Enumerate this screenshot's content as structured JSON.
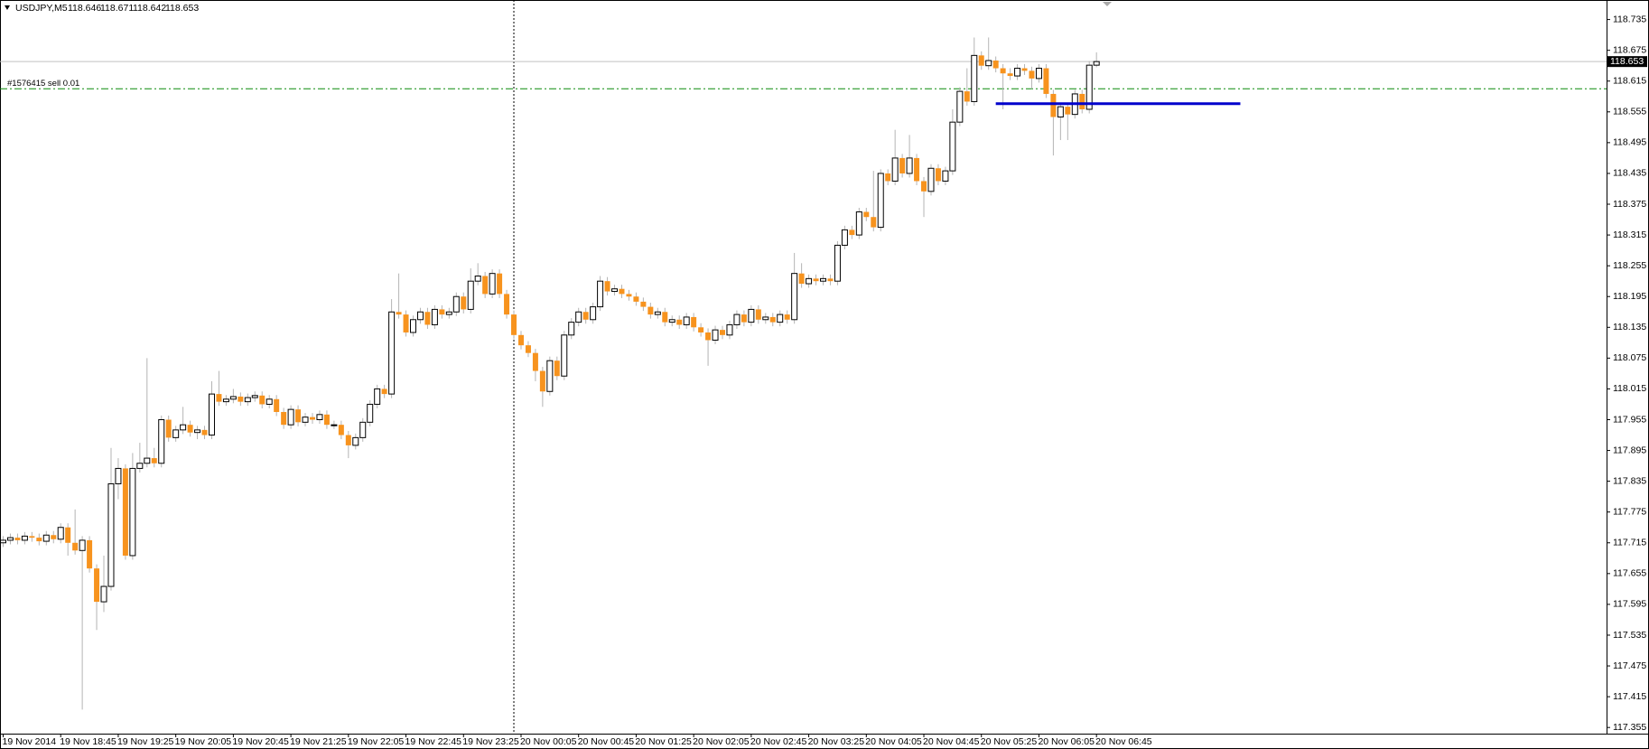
{
  "chart_data": {
    "type": "candlestick",
    "symbol": "USDJPY,M5",
    "categories": [
      "19 Nov 2014",
      null,
      null,
      null,
      null,
      null,
      null,
      null,
      "19 Nov 18:45",
      null,
      null,
      null,
      null,
      null,
      null,
      null,
      "19 Nov 19:25",
      null,
      null,
      null,
      null,
      null,
      null,
      null,
      "19 Nov 20:05",
      null,
      null,
      null,
      null,
      null,
      null,
      null,
      "19 Nov 20:45",
      null,
      null,
      null,
      null,
      null,
      null,
      null,
      "19 Nov 21:25",
      null,
      null,
      null,
      null,
      null,
      null,
      null,
      "19 Nov 22:05",
      null,
      null,
      null,
      null,
      null,
      null,
      null,
      "19 Nov 22:45",
      null,
      null,
      null,
      null,
      null,
      null,
      null,
      "19 Nov 23:25",
      null,
      null,
      null,
      null,
      null,
      null,
      null,
      "20 Nov 00:05",
      null,
      null,
      null,
      null,
      null,
      null,
      null,
      "20 Nov 00:45",
      null,
      null,
      null,
      null,
      null,
      null,
      null,
      "20 Nov 01:25",
      null,
      null,
      null,
      null,
      null,
      null,
      null,
      "20 Nov 02:05",
      null,
      null,
      null,
      null,
      null,
      null,
      null,
      "20 Nov 02:45",
      null,
      null,
      null,
      null,
      null,
      null,
      null,
      "20 Nov 03:25",
      null,
      null,
      null,
      null,
      null,
      null,
      null,
      "20 Nov 04:05",
      null,
      null,
      null,
      null,
      null,
      null,
      null,
      "20 Nov 04:45",
      null,
      null,
      null,
      null,
      null,
      null,
      null,
      "20 Nov 05:25",
      null,
      null,
      null,
      null,
      null,
      null,
      null,
      "20 Nov 06:05",
      null,
      null,
      null,
      null,
      null,
      null,
      null,
      "20 Nov 06:45"
    ],
    "ohlc": [
      [
        117.715,
        117.728,
        117.707,
        117.72
      ],
      [
        117.72,
        117.733,
        117.712,
        117.725
      ],
      [
        117.725,
        117.733,
        117.712,
        117.72
      ],
      [
        117.72,
        117.736,
        117.712,
        117.728
      ],
      [
        117.728,
        117.736,
        117.717,
        117.725
      ],
      [
        117.725,
        117.733,
        117.71,
        117.718
      ],
      [
        117.718,
        117.738,
        117.71,
        117.73
      ],
      [
        117.73,
        117.738,
        117.714,
        117.722
      ],
      [
        117.722,
        117.753,
        117.714,
        117.745
      ],
      [
        117.745,
        117.753,
        117.69,
        117.715
      ],
      [
        117.715,
        117.78,
        117.692,
        117.7
      ],
      [
        117.7,
        117.728,
        117.39,
        117.72
      ],
      [
        117.72,
        117.728,
        117.657,
        117.665
      ],
      [
        117.665,
        117.673,
        117.545,
        117.6
      ],
      [
        117.6,
        117.69,
        117.58,
        117.63
      ],
      [
        117.63,
        117.9,
        117.622,
        117.83
      ],
      [
        117.83,
        117.88,
        117.8,
        117.86
      ],
      [
        117.86,
        117.868,
        117.682,
        117.69
      ],
      [
        117.69,
        117.89,
        117.682,
        117.86
      ],
      [
        117.86,
        117.91,
        117.852,
        117.87
      ],
      [
        117.87,
        118.075,
        117.862,
        117.88
      ],
      [
        117.88,
        117.9,
        117.862,
        117.87
      ],
      [
        117.87,
        117.963,
        117.862,
        117.955
      ],
      [
        117.955,
        117.963,
        117.912,
        117.92
      ],
      [
        117.92,
        117.943,
        117.912,
        117.935
      ],
      [
        117.935,
        117.98,
        117.927,
        117.945
      ],
      [
        117.945,
        117.953,
        117.922,
        117.93
      ],
      [
        117.93,
        117.943,
        117.917,
        117.935
      ],
      [
        117.935,
        117.943,
        117.917,
        117.925
      ],
      [
        117.925,
        118.03,
        117.917,
        118.005
      ],
      [
        118.005,
        118.05,
        117.982,
        117.99
      ],
      [
        117.99,
        118.003,
        117.982,
        117.995
      ],
      [
        117.995,
        118.015,
        117.987,
        118.0
      ],
      [
        118.0,
        118.008,
        117.982,
        117.99
      ],
      [
        117.99,
        118.006,
        117.982,
        117.998
      ],
      [
        117.998,
        118.01,
        117.99,
        118.002
      ],
      [
        118.002,
        118.01,
        117.977,
        117.985
      ],
      [
        117.985,
        118.003,
        117.977,
        117.995
      ],
      [
        117.995,
        118.003,
        117.962,
        117.97
      ],
      [
        117.97,
        117.978,
        117.937,
        117.945
      ],
      [
        117.945,
        117.983,
        117.937,
        117.975
      ],
      [
        117.975,
        117.983,
        117.942,
        117.95
      ],
      [
        117.95,
        117.968,
        117.942,
        117.96
      ],
      [
        117.96,
        117.968,
        117.947,
        117.955
      ],
      [
        117.955,
        117.973,
        117.947,
        117.965
      ],
      [
        117.965,
        117.973,
        117.937,
        117.945
      ],
      [
        117.945,
        117.953,
        117.937,
        117.945
      ],
      [
        117.945,
        117.953,
        117.917,
        117.925
      ],
      [
        117.925,
        117.933,
        117.88,
        117.905
      ],
      [
        117.905,
        117.928,
        117.897,
        117.92
      ],
      [
        117.92,
        117.958,
        117.912,
        117.95
      ],
      [
        117.95,
        117.993,
        117.942,
        117.985
      ],
      [
        117.985,
        118.023,
        117.977,
        118.015
      ],
      [
        118.015,
        118.023,
        117.997,
        118.005
      ],
      [
        118.005,
        118.19,
        117.997,
        118.165
      ],
      [
        118.165,
        118.24,
        118.152,
        118.16
      ],
      [
        118.16,
        118.168,
        118.117,
        118.125
      ],
      [
        118.125,
        118.158,
        118.117,
        118.15
      ],
      [
        118.15,
        118.173,
        118.142,
        118.165
      ],
      [
        118.165,
        118.173,
        118.132,
        118.14
      ],
      [
        118.14,
        118.178,
        118.132,
        118.17
      ],
      [
        118.17,
        118.178,
        118.152,
        118.16
      ],
      [
        118.16,
        118.173,
        118.152,
        118.165
      ],
      [
        118.165,
        118.203,
        118.157,
        118.195
      ],
      [
        118.195,
        118.203,
        118.162,
        118.17
      ],
      [
        118.17,
        118.25,
        118.162,
        118.225
      ],
      [
        118.225,
        118.26,
        118.217,
        118.235
      ],
      [
        118.235,
        118.243,
        118.192,
        118.2
      ],
      [
        118.2,
        118.248,
        118.192,
        118.24
      ],
      [
        118.24,
        118.248,
        118.192,
        118.2
      ],
      [
        118.2,
        118.208,
        118.152,
        118.16
      ],
      [
        118.16,
        118.168,
        118.112,
        118.12
      ],
      [
        118.12,
        118.128,
        118.092,
        118.1
      ],
      [
        118.1,
        118.108,
        118.077,
        118.085
      ],
      [
        118.085,
        118.093,
        118.03,
        118.05
      ],
      [
        118.05,
        118.058,
        117.98,
        118.01
      ],
      [
        118.01,
        118.078,
        118.002,
        118.07
      ],
      [
        118.07,
        118.078,
        118.032,
        118.04
      ],
      [
        118.04,
        118.128,
        118.032,
        118.12
      ],
      [
        118.12,
        118.153,
        118.112,
        118.145
      ],
      [
        118.145,
        118.173,
        118.137,
        118.165
      ],
      [
        118.165,
        118.173,
        118.142,
        118.15
      ],
      [
        118.15,
        118.183,
        118.142,
        118.175
      ],
      [
        118.175,
        118.235,
        118.167,
        118.225
      ],
      [
        118.225,
        118.233,
        118.197,
        118.205
      ],
      [
        118.205,
        118.218,
        118.197,
        118.21
      ],
      [
        118.21,
        118.218,
        118.192,
        118.2
      ],
      [
        118.2,
        118.208,
        118.187,
        118.195
      ],
      [
        118.195,
        118.203,
        118.177,
        118.185
      ],
      [
        118.185,
        118.193,
        118.167,
        118.175
      ],
      [
        118.175,
        118.183,
        118.152,
        118.16
      ],
      [
        118.16,
        118.173,
        118.152,
        118.165
      ],
      [
        118.165,
        118.173,
        118.137,
        118.145
      ],
      [
        118.145,
        118.158,
        118.137,
        118.15
      ],
      [
        118.15,
        118.158,
        118.132,
        118.14
      ],
      [
        118.14,
        118.163,
        118.132,
        118.155
      ],
      [
        118.155,
        118.163,
        118.127,
        118.135
      ],
      [
        118.135,
        118.143,
        118.117,
        118.125
      ],
      [
        118.125,
        118.133,
        118.06,
        118.11
      ],
      [
        118.11,
        118.138,
        118.102,
        118.13
      ],
      [
        118.13,
        118.138,
        118.112,
        118.12
      ],
      [
        118.12,
        118.148,
        118.112,
        118.14
      ],
      [
        118.14,
        118.168,
        118.132,
        118.16
      ],
      [
        118.16,
        118.168,
        118.137,
        118.145
      ],
      [
        118.145,
        118.178,
        118.137,
        118.17
      ],
      [
        118.17,
        118.178,
        118.142,
        118.15
      ],
      [
        118.15,
        118.163,
        118.142,
        118.155
      ],
      [
        118.155,
        118.163,
        118.137,
        118.145
      ],
      [
        118.145,
        118.168,
        118.137,
        118.16
      ],
      [
        118.16,
        118.168,
        118.142,
        118.15
      ],
      [
        118.15,
        118.28,
        118.142,
        118.24
      ],
      [
        118.24,
        118.26,
        118.212,
        118.22
      ],
      [
        118.22,
        118.238,
        118.212,
        118.23
      ],
      [
        118.23,
        118.238,
        118.217,
        118.225
      ],
      [
        118.225,
        118.238,
        118.217,
        118.23
      ],
      [
        118.23,
        118.238,
        118.217,
        118.225
      ],
      [
        118.225,
        118.303,
        118.217,
        118.295
      ],
      [
        118.295,
        118.333,
        118.287,
        118.325
      ],
      [
        118.325,
        118.333,
        118.307,
        118.315
      ],
      [
        118.315,
        118.368,
        118.307,
        118.36
      ],
      [
        118.36,
        118.368,
        118.342,
        118.35
      ],
      [
        118.35,
        118.44,
        118.322,
        118.33
      ],
      [
        118.33,
        118.443,
        118.322,
        118.435
      ],
      [
        118.435,
        118.443,
        118.412,
        118.42
      ],
      [
        118.42,
        118.52,
        118.412,
        118.465
      ],
      [
        118.465,
        118.473,
        118.427,
        118.435
      ],
      [
        118.435,
        118.51,
        118.427,
        118.465
      ],
      [
        118.465,
        118.473,
        118.412,
        118.42
      ],
      [
        118.42,
        118.428,
        118.35,
        118.4
      ],
      [
        118.4,
        118.453,
        118.392,
        118.445
      ],
      [
        118.445,
        118.453,
        118.412,
        118.42
      ],
      [
        118.42,
        118.448,
        118.412,
        118.44
      ],
      [
        118.44,
        118.56,
        118.432,
        118.535
      ],
      [
        118.535,
        118.603,
        118.527,
        118.595
      ],
      [
        118.595,
        118.64,
        118.567,
        118.575
      ],
      [
        118.575,
        118.7,
        118.567,
        118.665
      ],
      [
        118.665,
        118.673,
        118.637,
        118.645
      ],
      [
        118.645,
        118.7,
        118.637,
        118.655
      ],
      [
        118.655,
        118.663,
        118.632,
        118.64
      ],
      [
        118.64,
        118.648,
        118.56,
        118.63
      ],
      [
        118.63,
        118.64,
        118.617,
        118.625
      ],
      [
        118.625,
        118.648,
        118.617,
        118.64
      ],
      [
        118.64,
        118.648,
        118.627,
        118.635
      ],
      [
        118.635,
        118.643,
        118.6,
        118.62
      ],
      [
        118.62,
        118.648,
        118.612,
        118.64
      ],
      [
        118.64,
        118.648,
        118.582,
        118.59
      ],
      [
        118.59,
        118.598,
        118.47,
        118.545
      ],
      [
        118.545,
        118.573,
        118.5,
        118.565
      ],
      [
        118.565,
        118.573,
        118.5,
        118.55
      ],
      [
        118.55,
        118.598,
        118.542,
        118.59
      ],
      [
        118.59,
        118.598,
        118.552,
        118.56
      ],
      [
        118.56,
        118.654,
        118.552,
        118.646
      ],
      [
        118.646,
        118.671,
        118.642,
        118.653
      ]
    ],
    "up_color": "#ffffff",
    "down_color": "#f7931e",
    "wick_color": "#b4b4b4",
    "ylim": [
      117.343,
      118.766
    ],
    "yticks": [
      117.355,
      117.415,
      117.475,
      117.535,
      117.595,
      117.655,
      117.715,
      117.775,
      117.835,
      117.895,
      117.955,
      118.015,
      118.075,
      118.135,
      118.195,
      118.255,
      118.315,
      118.375,
      118.435,
      118.495,
      118.555,
      118.615,
      118.675,
      118.735
    ],
    "order": {
      "label": "#1576415 sell 0.01",
      "price": 118.6,
      "color": "#0a8a0a"
    },
    "blue_line": {
      "price": 118.571,
      "from": 138,
      "to": 172,
      "color": "#0000cc"
    },
    "separator_at": 71
  }
}
